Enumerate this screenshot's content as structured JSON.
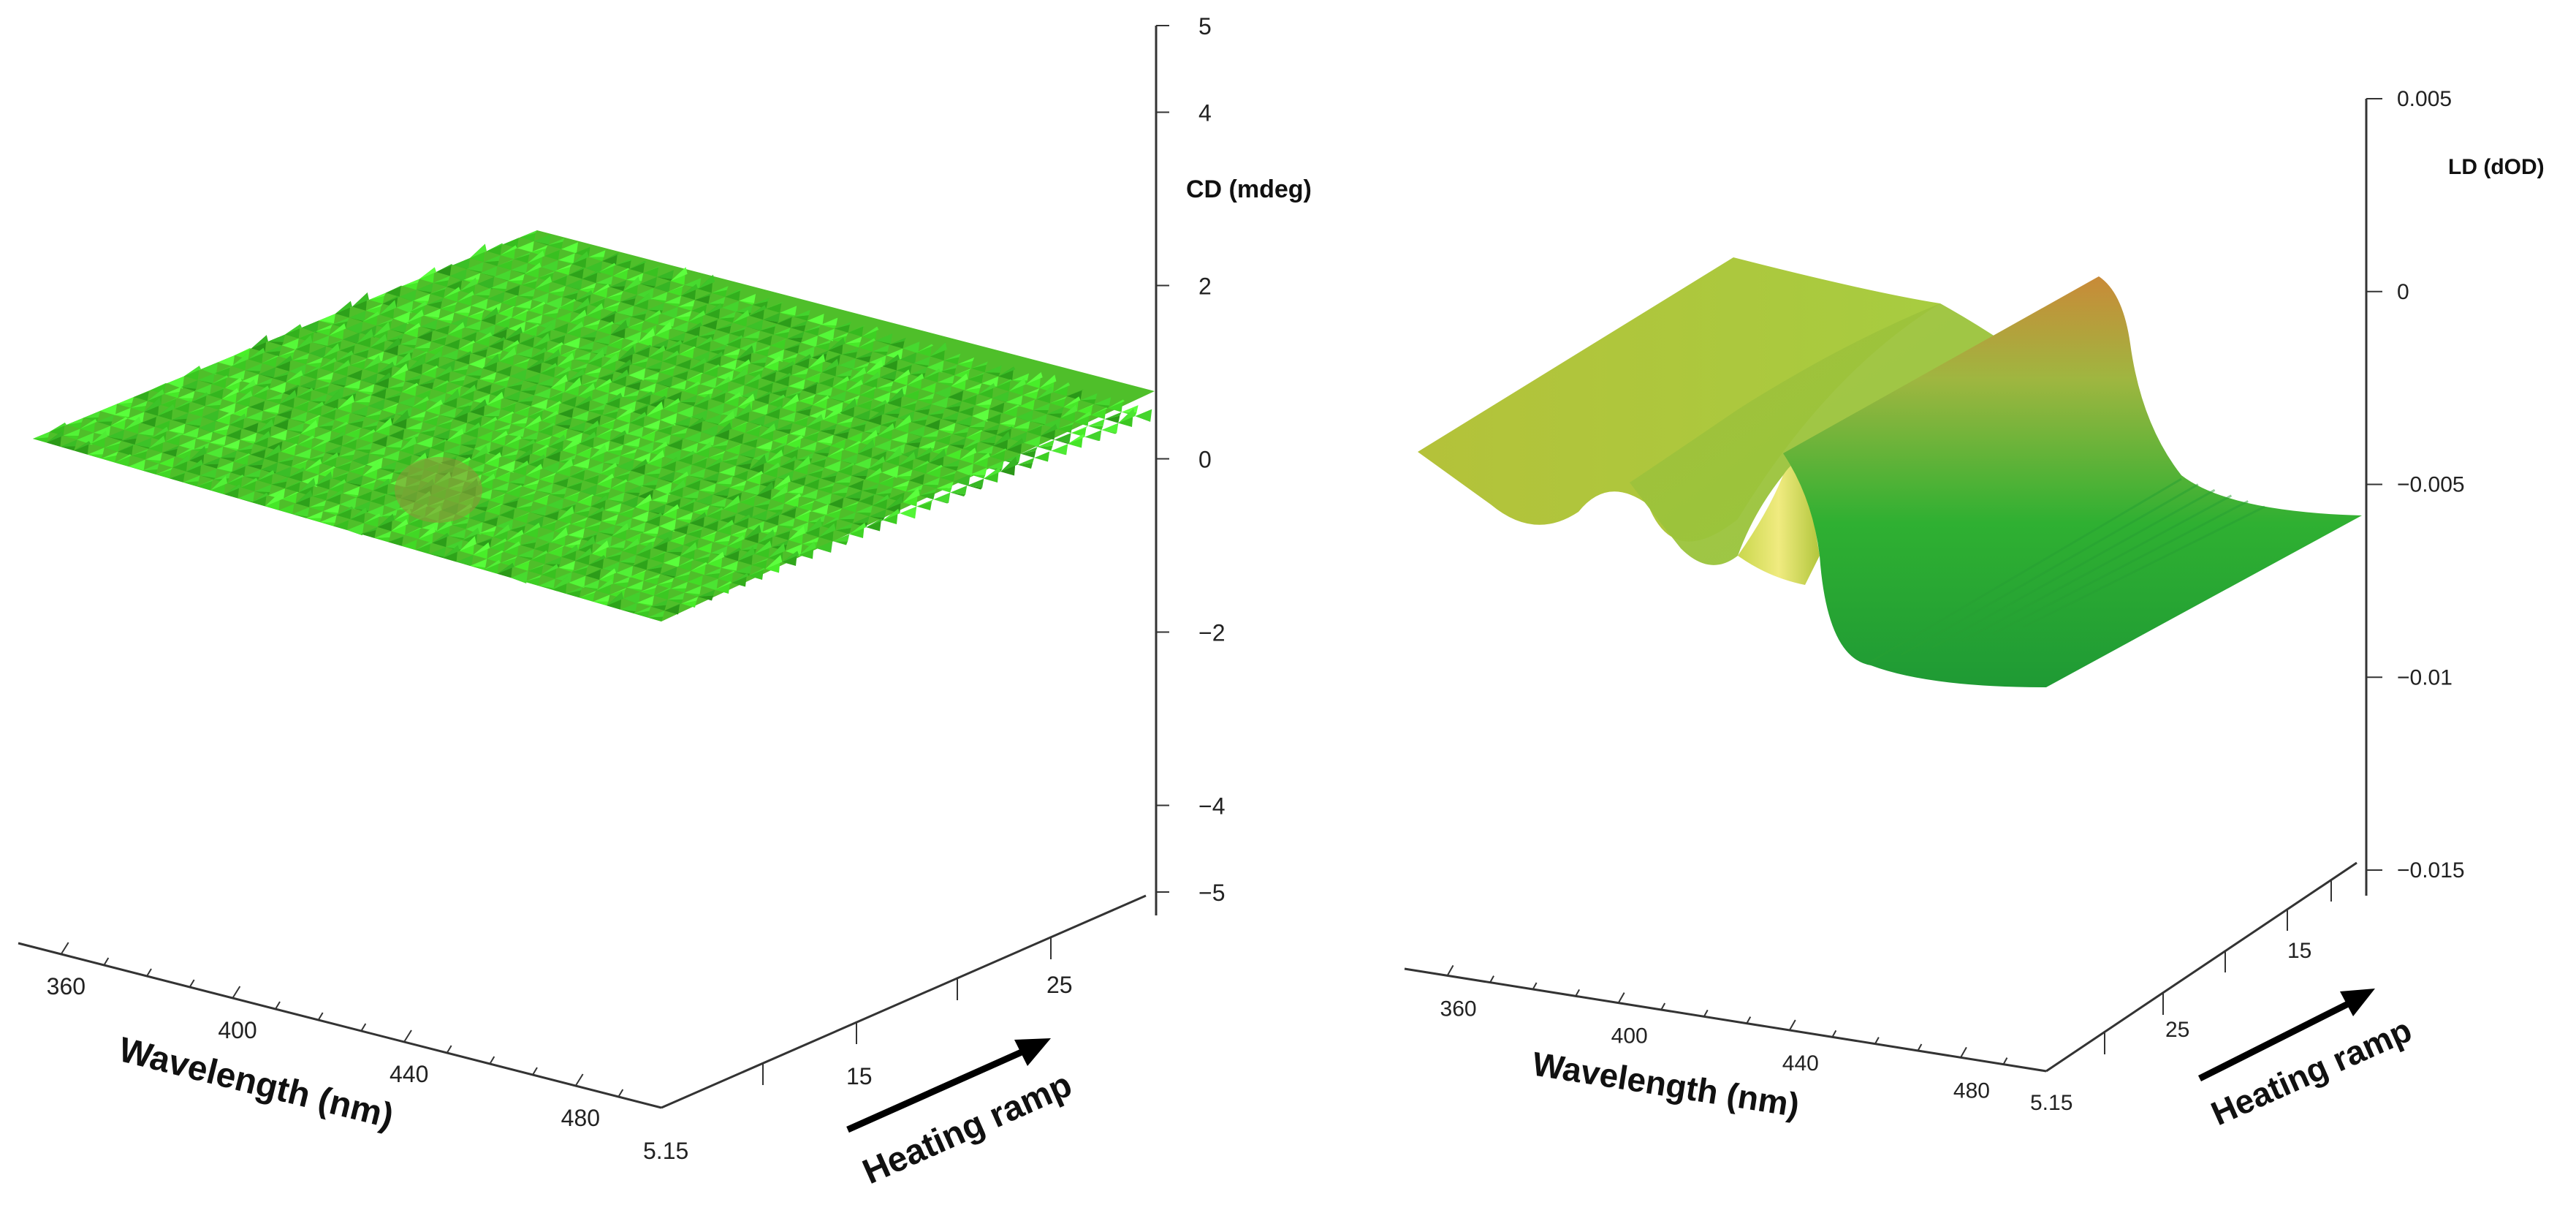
{
  "chart_data": [
    {
      "type": "surface3d",
      "name": "CD panel",
      "z_label": "CD (mdeg)",
      "z_ticks": [
        5,
        4,
        2,
        0,
        -2,
        -4,
        -5
      ],
      "z_tick_labels": [
        "5",
        "4",
        "2",
        "0",
        "−2",
        "−4",
        "−5"
      ],
      "zlim": [
        -5,
        5
      ],
      "x_label": "Wavelength (nm)",
      "x_ticks": [
        360,
        400,
        440,
        480
      ],
      "x_tick_labels": [
        "360",
        "400",
        "440",
        "480"
      ],
      "xlim": [
        350,
        500
      ],
      "y_label": "Heating ramp",
      "y_tick_labels": [
        "5.15",
        "15",
        "25"
      ],
      "surface": {
        "description_values": "noisy signal near 0 mdeg",
        "approx_level": 0.3,
        "noise_amplitude": 1.3
      }
    },
    {
      "type": "surface3d",
      "name": "LD panel",
      "z_label": "LD (dOD)",
      "z_ticks": [
        0.005,
        0,
        -0.005,
        -0.01,
        -0.015
      ],
      "z_tick_labels": [
        "0.005",
        "0",
        "−0.005",
        "−0.01",
        "−0.015"
      ],
      "zlim": [
        -0.015,
        0.005
      ],
      "x_label": "Wavelength (nm)",
      "x_ticks": [
        360,
        400,
        440,
        480
      ],
      "x_tick_labels": [
        "360",
        "400",
        "440",
        "480"
      ],
      "xlim": [
        350,
        500
      ],
      "y_label": "Heating ramp",
      "y_tick_labels": [
        "15",
        "25",
        "5.15"
      ],
      "surface": {
        "profile_wavelength": [
          350,
          375,
          400,
          420,
          430,
          440,
          455,
          470,
          500
        ],
        "profile_ld": [
          -0.002,
          -0.0005,
          -0.004,
          -0.006,
          0.0,
          -0.0015,
          -0.0065,
          -0.0075,
          -0.0078
        ]
      }
    }
  ],
  "colors": {
    "cd_dark": "#3a9a1c",
    "cd_light": "#74e24a",
    "ld_green": "#2fae32",
    "ld_yellow": "#cfd84a",
    "ld_red": "#c47a30",
    "axis": "#333333"
  }
}
